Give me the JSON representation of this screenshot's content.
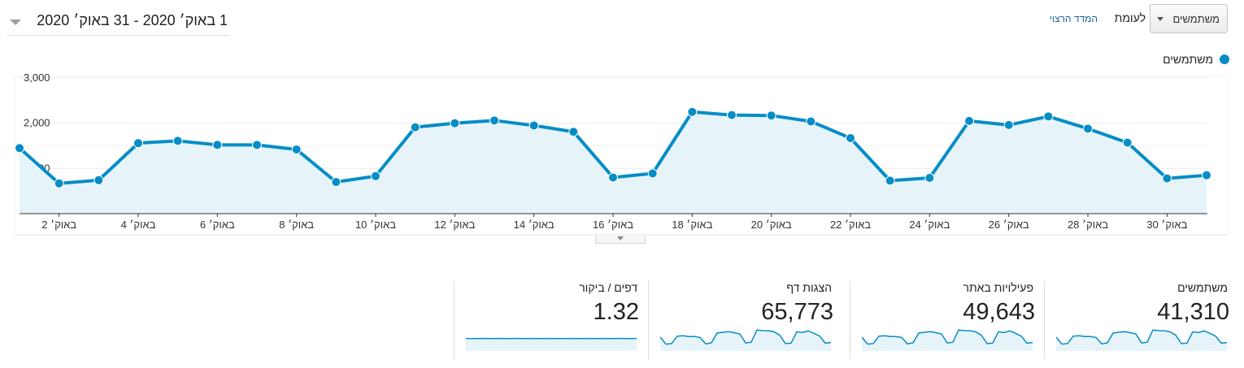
{
  "date_range": {
    "text": "1 באוק׳ 2020 - 31 באוק׳ 2020"
  },
  "controls": {
    "metric_select": "משתמשים",
    "versus_label": "לעומת",
    "desired_metric_link": "המדד הרצוי"
  },
  "legend": {
    "series_name": "משתמשים",
    "color": "#058dc7"
  },
  "chart_data": {
    "type": "area",
    "x": [
      1,
      2,
      3,
      4,
      5,
      6,
      7,
      8,
      9,
      10,
      11,
      12,
      13,
      14,
      15,
      16,
      17,
      18,
      19,
      20,
      21,
      22,
      23,
      24,
      25,
      26,
      27,
      28,
      29,
      30,
      31
    ],
    "series": [
      {
        "name": "משתמשים",
        "values": [
          1450,
          670,
          740,
          1560,
          1610,
          1520,
          1520,
          1420,
          700,
          830,
          1910,
          2000,
          2060,
          1950,
          1810,
          800,
          890,
          2250,
          2180,
          2170,
          2040,
          1670,
          730,
          790,
          2050,
          1960,
          2150,
          1880,
          1570,
          780,
          850
        ]
      }
    ],
    "ylim": [
      0,
      3000
    ],
    "yticks": [
      {
        "value": 1000,
        "label": "1,000"
      },
      {
        "value": 2000,
        "label": "2,000"
      },
      {
        "value": 3000,
        "label": "3,000"
      }
    ],
    "xticks": [
      {
        "day": 2,
        "label": "באוק׳ 2"
      },
      {
        "day": 4,
        "label": "באוק׳ 4"
      },
      {
        "day": 6,
        "label": "באוק׳ 6"
      },
      {
        "day": 8,
        "label": "באוק׳ 8"
      },
      {
        "day": 10,
        "label": "באוק׳ 10"
      },
      {
        "day": 12,
        "label": "באוק׳ 12"
      },
      {
        "day": 14,
        "label": "באוק׳ 14"
      },
      {
        "day": 16,
        "label": "באוק׳ 16"
      },
      {
        "day": 18,
        "label": "באוק׳ 18"
      },
      {
        "day": 20,
        "label": "באוק׳ 20"
      },
      {
        "day": 22,
        "label": "באוק׳ 22"
      },
      {
        "day": 24,
        "label": "באוק׳ 24"
      },
      {
        "day": 26,
        "label": "באוק׳ 26"
      },
      {
        "day": 28,
        "label": "באוק׳ 28"
      },
      {
        "day": 30,
        "label": "באוק׳ 30"
      }
    ],
    "grid": true,
    "line_color": "#058dc7",
    "fill_color": "#e6f4fa"
  },
  "scorecards": [
    {
      "title": "משתמשים",
      "value": "41,310",
      "trend": "users"
    },
    {
      "title": "פעילויות באתר",
      "value": "49,643",
      "trend": "sessions"
    },
    {
      "title": "הצגות דף",
      "value": "65,773",
      "trend": "pageviews"
    },
    {
      "title": "דפים / ביקור",
      "value": "1.32",
      "trend": "pages_per_session"
    }
  ]
}
